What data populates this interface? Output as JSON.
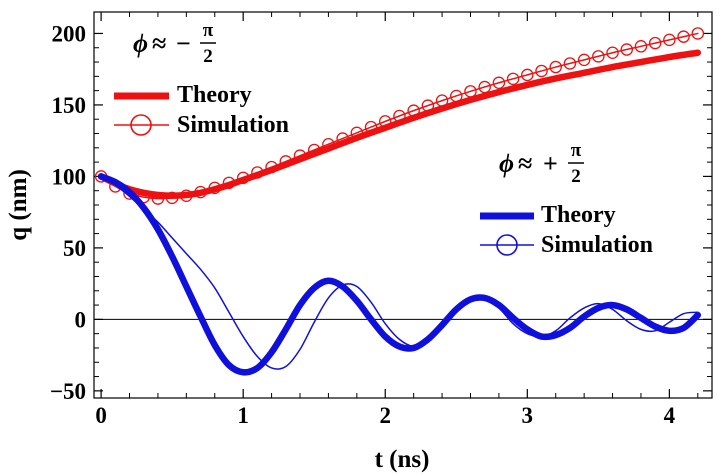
{
  "chart_data": {
    "type": "line",
    "title": "",
    "xlabel": "t (ns)",
    "ylabel": "q (nm)",
    "xlim": [
      -0.05,
      4.3
    ],
    "ylim": [
      -55,
      215
    ],
    "xticks": [
      0,
      1,
      2,
      3,
      4
    ],
    "yticks": [
      -50,
      0,
      50,
      100,
      150,
      200
    ],
    "xtick_labels": [
      "0",
      "1",
      "2",
      "3",
      "4"
    ],
    "ytick_labels": [
      "−50",
      "0",
      "50",
      "100",
      "150",
      "200"
    ],
    "zero_line": true,
    "colors": {
      "red": "#ee1111",
      "blue": "#1010dd"
    },
    "groups": [
      {
        "phase_label": {
          "phi": "ϕ",
          "approx": "≈",
          "sign": "−",
          "numerator": "π",
          "denominator": "2"
        },
        "series": [
          {
            "name": "Theory",
            "color": "red",
            "style": "thick-line",
            "x": [
              0,
              0.1,
              0.2,
              0.3,
              0.4,
              0.5,
              0.6,
              0.7,
              0.8,
              0.9,
              1.0,
              1.2,
              1.4,
              1.6,
              1.8,
              2.0,
              2.2,
              2.4,
              2.6,
              2.8,
              3.0,
              3.2,
              3.4,
              3.6,
              3.8,
              4.0,
              4.2
            ],
            "y": [
              100,
              95,
              91,
              88.5,
              87,
              86.5,
              87,
              88.5,
              91,
              94,
              97.5,
              104.5,
              112,
              119.5,
              127,
              134,
              141,
              147.5,
              153.5,
              159,
              164,
              168.5,
              172.5,
              176.5,
              180,
              183.5,
              186.5
            ]
          },
          {
            "name": "Simulation",
            "color": "red",
            "style": "thin-line-circles",
            "x": [
              0,
              0.1,
              0.2,
              0.3,
              0.4,
              0.5,
              0.6,
              0.7,
              0.8,
              0.9,
              1.0,
              1.2,
              1.4,
              1.6,
              1.8,
              2.0,
              2.2,
              2.4,
              2.6,
              2.8,
              3.0,
              3.2,
              3.4,
              3.6,
              3.8,
              4.0,
              4.2
            ],
            "y": [
              100,
              93,
              88,
              85.5,
              84.5,
              85,
              86.5,
              89,
              92,
              95.5,
              99,
              106.5,
              114.5,
              122.5,
              130.5,
              138.5,
              146,
              153,
              159.5,
              165.5,
              171,
              176.5,
              181.5,
              186.5,
              191,
              195.5,
              200
            ],
            "marker_x": [
              0,
              0.1,
              0.2,
              0.3,
              0.4,
              0.5,
              0.6,
              0.7,
              0.8,
              0.9,
              1.0,
              1.1,
              1.2,
              1.3,
              1.4,
              1.5,
              1.6,
              1.7,
              1.8,
              1.9,
              2.0,
              2.1,
              2.2,
              2.3,
              2.4,
              2.5,
              2.6,
              2.7,
              2.8,
              2.9,
              3.0,
              3.1,
              3.2,
              3.3,
              3.4,
              3.5,
              3.6,
              3.7,
              3.8,
              3.9,
              4.0,
              4.1,
              4.2
            ]
          }
        ]
      },
      {
        "phase_label": {
          "phi": "ϕ",
          "approx": "≈",
          "sign": "+",
          "numerator": "π",
          "denominator": "2"
        },
        "series": [
          {
            "name": "Theory",
            "color": "blue",
            "style": "thick-line",
            "x": [
              0,
              0.1,
              0.2,
              0.3,
              0.4,
              0.5,
              0.6,
              0.7,
              0.8,
              0.9,
              1.0,
              1.1,
              1.2,
              1.3,
              1.4,
              1.5,
              1.6,
              1.7,
              1.8,
              1.9,
              2.0,
              2.1,
              2.2,
              2.3,
              2.4,
              2.5,
              2.6,
              2.7,
              2.8,
              2.9,
              3.0,
              3.1,
              3.2,
              3.3,
              3.4,
              3.5,
              3.6,
              3.7,
              3.8,
              3.9,
              4.0,
              4.1,
              4.2
            ],
            "y": [
              100,
              96,
              89,
              78,
              63,
              44,
              23,
              2,
              -18,
              -32,
              -37,
              -34,
              -23,
              -7,
              10,
              22,
              27,
              23,
              13,
              0,
              -12,
              -19,
              -20,
              -14,
              -4,
              7,
              14,
              15,
              10,
              1,
              -7,
              -12,
              -11,
              -6,
              2,
              8,
              10,
              7,
              1,
              -5,
              -8,
              -6,
              3
            ]
          },
          {
            "name": "Simulation",
            "color": "blue",
            "style": "thin-line-circles",
            "x": [
              0,
              0.1,
              0.2,
              0.3,
              0.4,
              0.5,
              0.6,
              0.7,
              0.8,
              0.9,
              1.0,
              1.1,
              1.2,
              1.3,
              1.4,
              1.5,
              1.6,
              1.7,
              1.8,
              1.9,
              2.0,
              2.1,
              2.2,
              2.3,
              2.4,
              2.5,
              2.6,
              2.7,
              2.8,
              2.9,
              3.0,
              3.1,
              3.2,
              3.3,
              3.4,
              3.5,
              3.6,
              3.7,
              3.8,
              3.9,
              4.0,
              4.1,
              4.2
            ],
            "y": [
              100,
              94,
              86,
              77,
              68,
              57,
              46,
              35,
              22,
              5,
              -12,
              -26,
              -34,
              -33,
              -21,
              -2,
              15,
              24,
              23,
              12,
              -3,
              -14,
              -19,
              -16,
              -6,
              6,
              14,
              15,
              8,
              -3,
              -10,
              -12,
              -8,
              1,
              8,
              11,
              7,
              -1,
              -7,
              -8,
              -2,
              4,
              5
            ]
          }
        ]
      }
    ]
  }
}
